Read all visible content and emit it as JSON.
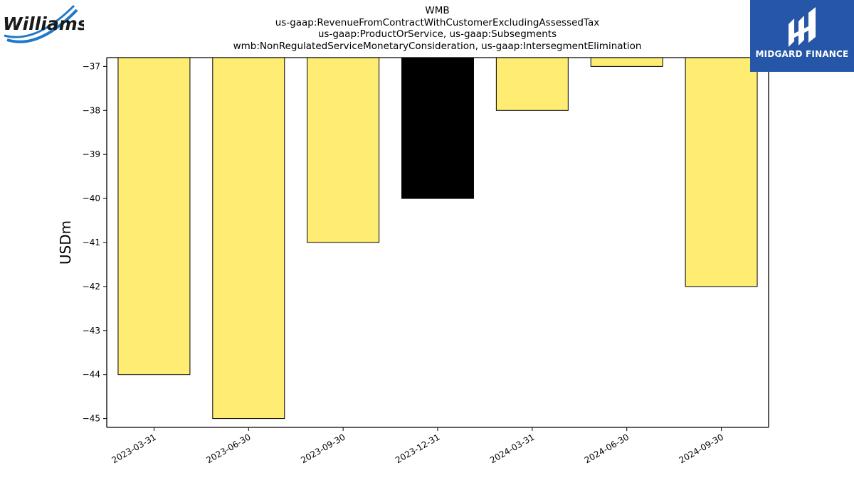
{
  "titles": [
    "WMB",
    "us-gaap:RevenueFromContractWithCustomerExcludingAssessedTax",
    "us-gaap:ProductOrService, us-gaap:Subsegments",
    "wmb:NonRegulatedServiceMonetaryConsideration, us-gaap:IntersegmentElimination"
  ],
  "logos": {
    "left_text": "Williams",
    "right_text": "MIDGARD FINANCE"
  },
  "colors": {
    "bar_default": "#ffec73",
    "bar_highlight": "#000000",
    "logo_blue": "#1f78c8",
    "finance_blue": "#2556a8"
  },
  "chart_data": {
    "type": "bar",
    "categories": [
      "2023-03-31",
      "2023-06-30",
      "2023-09-30",
      "2023-12-31",
      "2024-03-31",
      "2024-06-30",
      "2024-09-30"
    ],
    "values": [
      -44,
      -45,
      -41,
      -40,
      -38,
      -37,
      -42
    ],
    "highlight_index": 3,
    "ylabel": "USDm",
    "ylim": [
      -45.2,
      -36.8
    ],
    "yticks": [
      -37,
      -38,
      -39,
      -40,
      -41,
      -42,
      -43,
      -44,
      -45
    ],
    "ytick_labels": [
      "−37",
      "−38",
      "−39",
      "−40",
      "−41",
      "−42",
      "−43",
      "−44",
      "−45"
    ],
    "grid": false,
    "legend": "none"
  }
}
